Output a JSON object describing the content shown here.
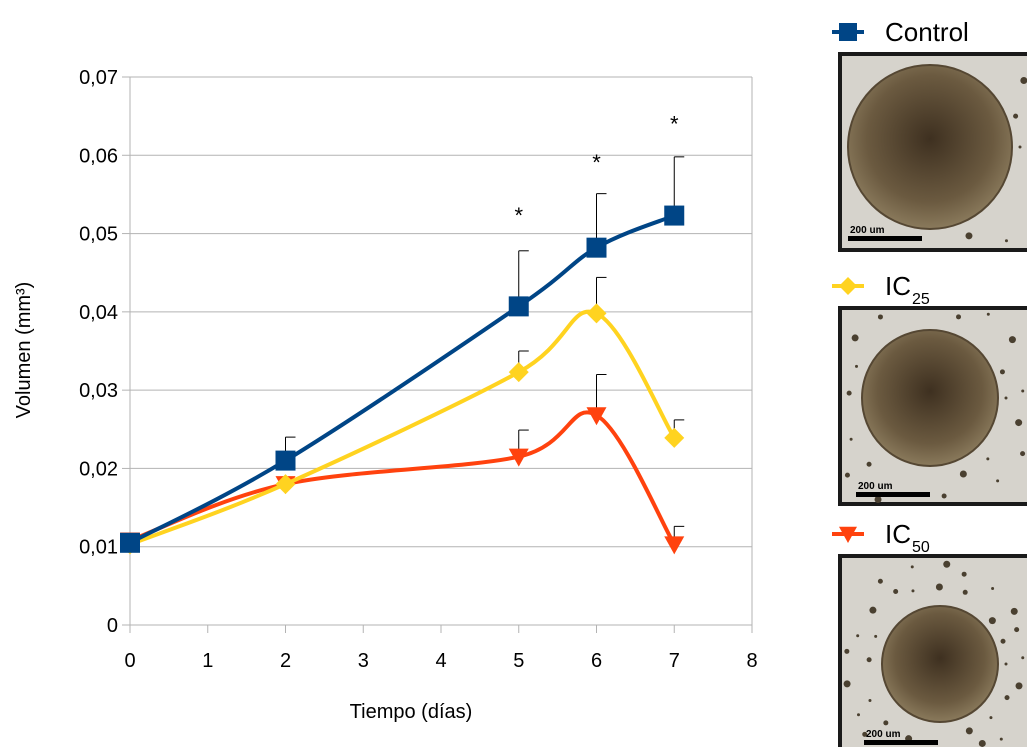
{
  "chart_data": {
    "type": "line",
    "x_label": "Tiempo (días)",
    "y_label": "Volumen (mm³)",
    "x": [
      0,
      2,
      5,
      6,
      7
    ],
    "xlim": [
      0,
      8
    ],
    "xticks": [
      0,
      1,
      2,
      3,
      4,
      5,
      6,
      7,
      8
    ],
    "ylim": [
      0,
      0.07
    ],
    "yticks": [
      0,
      {
        "value": 0.01,
        "label": "0,01"
      },
      {
        "value": 0.02,
        "label": "0,02"
      },
      {
        "value": 0.03,
        "label": "0,03"
      },
      {
        "value": 0.04,
        "label": "0,04"
      },
      {
        "value": 0.05,
        "label": "0,05"
      },
      {
        "value": 0.06,
        "label": "0,06"
      },
      {
        "value": 0.07,
        "label": "0,07"
      }
    ],
    "grid": true,
    "smooth": true,
    "series": [
      {
        "name": "Control",
        "color": "#004586",
        "marker": "square",
        "values": [
          0.0105,
          0.021,
          0.0407,
          0.0482,
          0.0523
        ],
        "errors": [
          null,
          0.003,
          0.0071,
          0.0069,
          0.0075
        ],
        "scale_label": "200 um"
      },
      {
        "name": "IC",
        "subscript": "25",
        "color": "#ffd320",
        "marker": "diamond",
        "values": [
          0.0103,
          0.018,
          0.0323,
          0.0398,
          0.0239
        ],
        "errors": [
          null,
          null,
          0.0027,
          0.0046,
          0.0023
        ],
        "scale_label": "200 um"
      },
      {
        "name": "IC",
        "subscript": "50",
        "color": "#ff420e",
        "marker": "triangle-down",
        "values": [
          0.0108,
          0.018,
          0.0215,
          0.0268,
          0.0103
        ],
        "errors": [
          null,
          null,
          0.0034,
          0.0052,
          0.0023
        ],
        "scale_label": "200 um"
      }
    ],
    "annotations": [
      {
        "text": "*",
        "x": 5,
        "y": 0.0526
      },
      {
        "text": "*",
        "x": 6,
        "y": 0.0594
      },
      {
        "text": "*",
        "x": 7,
        "y": 0.0643
      }
    ]
  }
}
